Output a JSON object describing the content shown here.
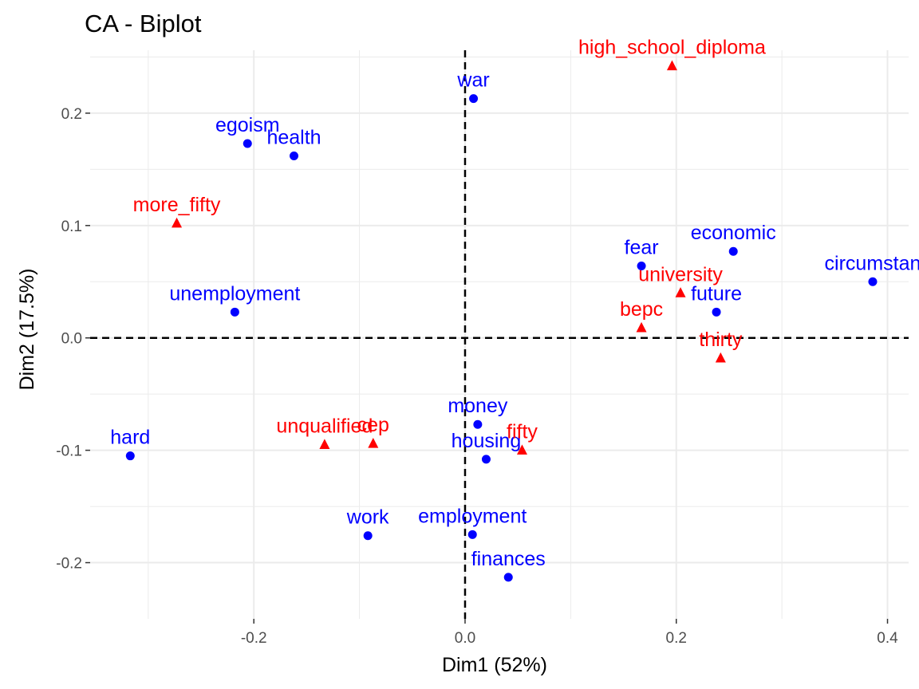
{
  "chart_data": {
    "type": "scatter",
    "title": "CA - Biplot",
    "xlabel": "Dim1 (52%)",
    "ylabel": "Dim2 (17.5%)",
    "xlim": [
      -0.355,
      0.42
    ],
    "ylim": [
      -0.25,
      0.256
    ],
    "x_ticks": [
      -0.2,
      0.0,
      0.2,
      0.4
    ],
    "x_tick_labels": [
      "-0.2",
      "0.0",
      "0.2",
      "0.4"
    ],
    "y_ticks": [
      -0.2,
      -0.1,
      0.0,
      0.1,
      0.2
    ],
    "y_tick_labels": [
      "-0.2",
      "-0.1",
      "0.0",
      "0.1",
      "0.2"
    ],
    "grid": true,
    "reference_lines": {
      "x": 0,
      "y": 0,
      "style": "dashed"
    },
    "colors": {
      "rows": "#0000ff",
      "cols": "#ff0000",
      "grid": "#ebebeb"
    },
    "series": [
      {
        "marker": "circle",
        "color": "#0000ff",
        "points": [
          {
            "label": "war",
            "x": 0.008,
            "y": 0.213
          },
          {
            "label": "egoism",
            "x": -0.206,
            "y": 0.173
          },
          {
            "label": "health",
            "x": -0.162,
            "y": 0.162
          },
          {
            "label": "fear",
            "x": 0.167,
            "y": 0.064
          },
          {
            "label": "economic",
            "x": 0.254,
            "y": 0.077
          },
          {
            "label": "circumstan",
            "x": 0.386,
            "y": 0.05
          },
          {
            "label": "future",
            "x": 0.238,
            "y": 0.023
          },
          {
            "label": "unemployment",
            "x": -0.218,
            "y": 0.023
          },
          {
            "label": "money",
            "x": 0.012,
            "y": -0.077
          },
          {
            "label": "housing",
            "x": 0.02,
            "y": -0.108
          },
          {
            "label": "hard",
            "x": -0.317,
            "y": -0.105
          },
          {
            "label": "work",
            "x": -0.092,
            "y": -0.176
          },
          {
            "label": "employment",
            "x": 0.007,
            "y": -0.175
          },
          {
            "label": "finances",
            "x": 0.041,
            "y": -0.213
          }
        ]
      },
      {
        "marker": "triangle",
        "color": "#ff0000",
        "points": [
          {
            "label": "high_school_diploma",
            "x": 0.196,
            "y": 0.242
          },
          {
            "label": "more_fifty",
            "x": -0.273,
            "y": 0.102
          },
          {
            "label": "university",
            "x": 0.204,
            "y": 0.04
          },
          {
            "label": "bepc",
            "x": 0.167,
            "y": 0.009
          },
          {
            "label": "thirty",
            "x": 0.242,
            "y": -0.018
          },
          {
            "label": "unqualified",
            "x": -0.133,
            "y": -0.095
          },
          {
            "label": "cep",
            "x": -0.087,
            "y": -0.094
          },
          {
            "label": "fifty",
            "x": 0.054,
            "y": -0.1
          }
        ]
      }
    ]
  }
}
